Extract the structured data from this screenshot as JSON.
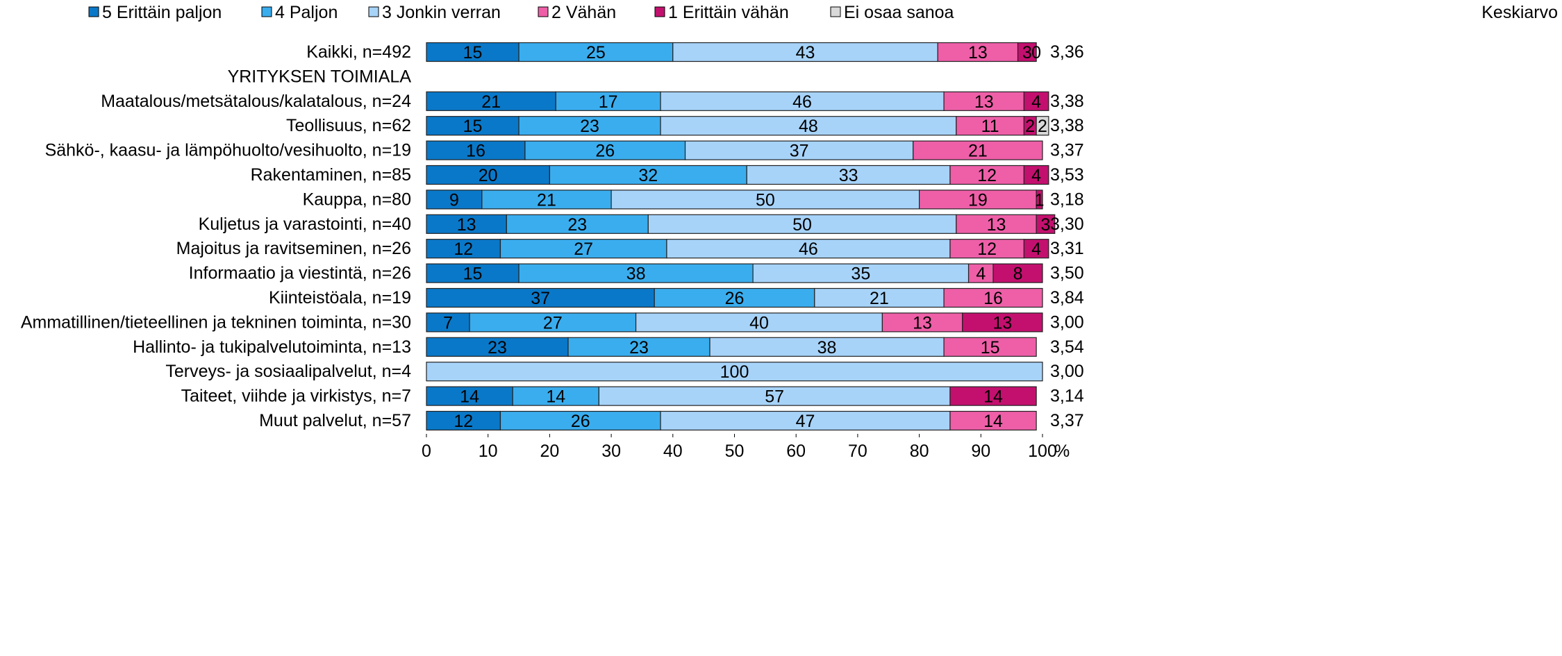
{
  "chart_data": {
    "type": "stacked-bar-horizontal",
    "categories": [
      "Kaikki, n=492",
      "YRITYKSEN TOIMIALA",
      "Maatalous/metsätalous/kalatalous, n=24",
      "Teollisuus, n=62",
      "Sähkö-, kaasu- ja lämpöhuolto/vesihuolto, n=19",
      "Rakentaminen, n=85",
      "Kauppa, n=80",
      "Kuljetus ja varastointi, n=40",
      "Majoitus ja ravitseminen, n=26",
      "Informaatio ja viestintä, n=26",
      "Kiinteistöala, n=19",
      "Ammatillinen/tieteellinen ja tekninen toiminta, n=30",
      "Hallinto- ja tukipalvelutoiminta, n=13",
      "Terveys- ja sosiaalipalvelut, n=4",
      "Taiteet, viihde ja virkistys, n=7",
      "Muut palvelut, n=57"
    ],
    "series": [
      {
        "name": "5 Erittäin paljon",
        "color": "#0a78c8",
        "values": [
          15,
          null,
          21,
          15,
          16,
          20,
          9,
          13,
          12,
          15,
          37,
          7,
          23,
          null,
          14,
          12
        ]
      },
      {
        "name": "4 Paljon",
        "color": "#3aadee",
        "values": [
          25,
          null,
          17,
          23,
          26,
          32,
          21,
          23,
          27,
          38,
          26,
          27,
          23,
          null,
          14,
          26
        ]
      },
      {
        "name": "3 Jonkin verran",
        "color": "#a7d3f9",
        "values": [
          43,
          null,
          46,
          48,
          37,
          33,
          50,
          50,
          46,
          35,
          21,
          40,
          38,
          100,
          57,
          47
        ]
      },
      {
        "name": "2 Vähän",
        "color": "#ee5fa8",
        "values": [
          13,
          null,
          13,
          11,
          21,
          12,
          19,
          13,
          12,
          4,
          16,
          13,
          15,
          null,
          null,
          14
        ]
      },
      {
        "name": "1 Erittäin vähän",
        "color": "#c3106e",
        "values": [
          3,
          null,
          4,
          2,
          null,
          4,
          1,
          3,
          4,
          8,
          null,
          13,
          null,
          null,
          14,
          null
        ]
      },
      {
        "name": "Ei osaa sanoa",
        "color": "#d9d9d9",
        "values": [
          0,
          null,
          null,
          2,
          null,
          null,
          null,
          null,
          null,
          null,
          null,
          null,
          null,
          null,
          null,
          null
        ]
      }
    ],
    "averages": {
      "name": "Keskiarvo",
      "values": [
        3.36,
        null,
        3.38,
        3.38,
        3.37,
        3.53,
        3.18,
        3.3,
        3.31,
        3.5,
        3.84,
        3.0,
        3.54,
        3.0,
        3.14,
        3.37
      ],
      "value_labels": [
        "3,36",
        null,
        "3,38",
        "3,38",
        "3,37",
        "3,53",
        "3,18",
        "3,30",
        "3,31",
        "3,50",
        "3,84",
        "3,00",
        "3,54",
        "3,00",
        "3,14",
        "3,37"
      ]
    },
    "xlim": [
      0,
      100
    ],
    "xticks": [
      0,
      10,
      20,
      30,
      40,
      50,
      60,
      70,
      80,
      90,
      100
    ],
    "xlabel": "%"
  }
}
